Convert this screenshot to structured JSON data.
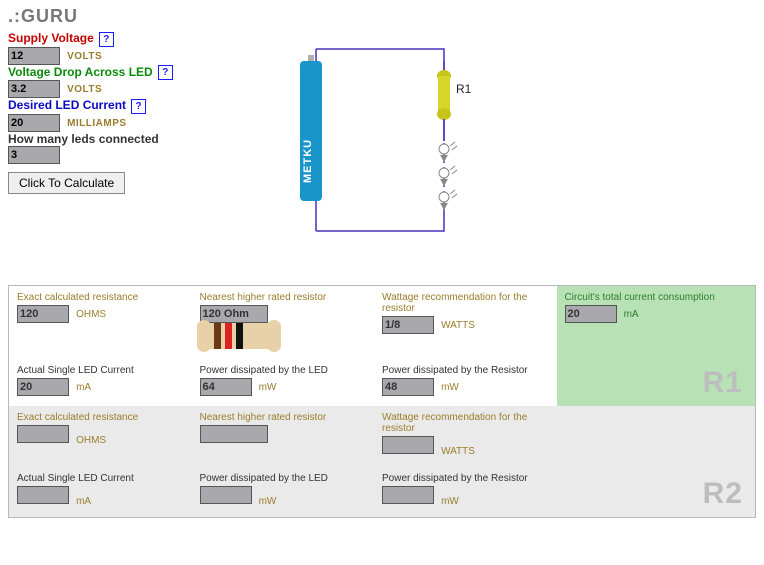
{
  "title": ".:GURU",
  "form": {
    "supply": {
      "label": "Supply Voltage",
      "value": "12",
      "unit": "VOLTS",
      "color": "#c40000"
    },
    "vdrop": {
      "label": "Voltage Drop Across LED",
      "value": "3.2",
      "unit": "VOLTS",
      "color": "#0a8a0a"
    },
    "iled": {
      "label": "Desired LED Current",
      "value": "20",
      "unit": "MILLIAMPS",
      "color": "#0a0ac4"
    },
    "nled": {
      "label": "How many leds connected",
      "value": "3",
      "unit": "",
      "color": "#333333"
    },
    "button": "Click To Calculate"
  },
  "diagram": {
    "wire_color": "#4a2fbf",
    "battery": {
      "body_color": "#1995c9",
      "tip_color": "#b0b0b0",
      "label": "METKU\nMODS",
      "label_color": "#ffffff"
    },
    "resistor": {
      "body_color": "#d6d628",
      "cap_color": "#c5c51a",
      "label": "R1"
    },
    "led_count": 3
  },
  "results": {
    "r1": {
      "tag": "R1",
      "exact": {
        "label": "Exact calculated resistance",
        "value": "120",
        "unit": "OHMS"
      },
      "nearest": {
        "label": "Nearest higher rated resistor",
        "value": "120 Ohm",
        "bands": [
          "#6b3a14",
          "#d22",
          "#111"
        ]
      },
      "wattage": {
        "label": "Wattage recommendation for the resistor",
        "value": "1/8",
        "unit": "WATTS"
      },
      "total_i": {
        "label": "Circuit's total current consumption",
        "value": "20",
        "unit": "mA"
      },
      "actual_i": {
        "label": "Actual Single LED Current",
        "value": "20",
        "unit": "mA"
      },
      "p_led": {
        "label": "Power dissipated by the LED",
        "value": "64",
        "unit": "mW"
      },
      "p_res": {
        "label": "Power dissipated by the Resistor",
        "value": "48",
        "unit": "mW"
      }
    },
    "r2": {
      "tag": "R2",
      "exact": {
        "label": "Exact calculated resistance",
        "value": "",
        "unit": "OHMS"
      },
      "nearest": {
        "label": "Nearest higher rated resistor",
        "value": "",
        "bands": []
      },
      "wattage": {
        "label": "Wattage recommendation for the resistor",
        "value": "",
        "unit": "WATTS"
      },
      "actual_i": {
        "label": "Actual Single LED Current",
        "value": "",
        "unit": "mA"
      },
      "p_led": {
        "label": "Power dissipated by the LED",
        "value": "",
        "unit": "mW"
      },
      "p_res": {
        "label": "Power dissipated by the Resistor",
        "value": "",
        "unit": "mW"
      }
    }
  }
}
